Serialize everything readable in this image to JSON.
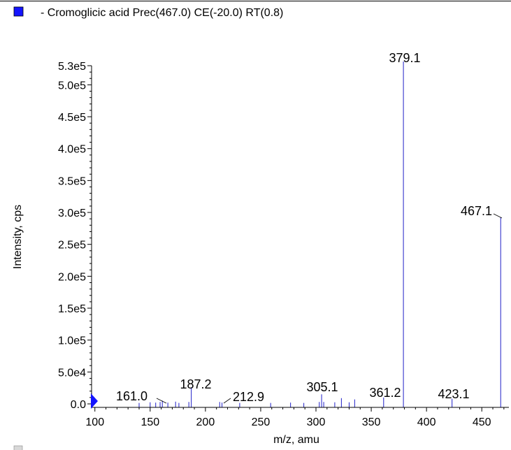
{
  "legend": {
    "label": "- Cromoglicic acid Prec(467.0) CE(-20.0) RT(0.8)",
    "color": "#1414ff"
  },
  "chart_data": {
    "type": "bar",
    "xlabel": "m/z, amu",
    "ylabel": "Intensity, cps",
    "xlim": [
      97,
      472
    ],
    "ylim": [
      0,
      530000
    ],
    "x_ticks": [
      {
        "value": 100,
        "label": "100"
      },
      {
        "value": 150,
        "label": "150"
      },
      {
        "value": 200,
        "label": "200"
      },
      {
        "value": 250,
        "label": "250"
      },
      {
        "value": 300,
        "label": "300"
      },
      {
        "value": 350,
        "label": "350"
      },
      {
        "value": 400,
        "label": "400"
      },
      {
        "value": 450,
        "label": "450"
      }
    ],
    "y_ticks": [
      {
        "value": 0,
        "label": "0.0"
      },
      {
        "value": 50000,
        "label": "5.0e4"
      },
      {
        "value": 100000,
        "label": "1.0e5"
      },
      {
        "value": 150000,
        "label": "1.5e5"
      },
      {
        "value": 200000,
        "label": "2.0e5"
      },
      {
        "value": 250000,
        "label": "2.5e5"
      },
      {
        "value": 300000,
        "label": "3.0e5"
      },
      {
        "value": 350000,
        "label": "3.5e5"
      },
      {
        "value": 400000,
        "label": "4.0e5"
      },
      {
        "value": 450000,
        "label": "4.5e5"
      },
      {
        "value": 500000,
        "label": "5.0e5"
      },
      {
        "value": 530000,
        "label": "5.3e5"
      }
    ],
    "series_color": "#2020c8",
    "peaks": [
      {
        "x": 140,
        "y": 1500
      },
      {
        "x": 150,
        "y": 2500
      },
      {
        "x": 155,
        "y": 2000
      },
      {
        "x": 159,
        "y": 3000
      },
      {
        "x": 161.0,
        "y": 5000
      },
      {
        "x": 166,
        "y": 2000
      },
      {
        "x": 173,
        "y": 3500
      },
      {
        "x": 176,
        "y": 1500
      },
      {
        "x": 185,
        "y": 3000
      },
      {
        "x": 187.2,
        "y": 26000
      },
      {
        "x": 212.9,
        "y": 3000
      },
      {
        "x": 215,
        "y": 2000
      },
      {
        "x": 231,
        "y": 1500
      },
      {
        "x": 259,
        "y": 1500
      },
      {
        "x": 277,
        "y": 2000
      },
      {
        "x": 289,
        "y": 1500
      },
      {
        "x": 303,
        "y": 3000
      },
      {
        "x": 305.1,
        "y": 15000
      },
      {
        "x": 307,
        "y": 3000
      },
      {
        "x": 317,
        "y": 2500
      },
      {
        "x": 323,
        "y": 9000
      },
      {
        "x": 330,
        "y": 2500
      },
      {
        "x": 335,
        "y": 7000
      },
      {
        "x": 361.2,
        "y": 10000
      },
      {
        "x": 379.1,
        "y": 540000
      },
      {
        "x": 423.1,
        "y": 8000
      },
      {
        "x": 467.1,
        "y": 292000
      }
    ],
    "annotations": [
      {
        "x": 161.0,
        "label": "161.0",
        "tx": 211,
        "ty": 573,
        "anchor": "end",
        "lx1": 224,
        "ly1": 570,
        "lx2": 238,
        "ly2": 577
      },
      {
        "x": 187.2,
        "label": "187.2",
        "tx": 280,
        "ty": 556,
        "anchor": "middle"
      },
      {
        "x": 212.9,
        "label": "212.9",
        "tx": 333,
        "ty": 574,
        "anchor": "start",
        "lx1": 320,
        "ly1": 577,
        "lx2": 330,
        "ly2": 570
      },
      {
        "x": 305.1,
        "label": "305.1",
        "tx": 461,
        "ty": 560,
        "anchor": "middle"
      },
      {
        "x": 361.2,
        "label": "361.2",
        "tx": 551,
        "ty": 568,
        "anchor": "middle"
      },
      {
        "x": 379.1,
        "label": "379.1",
        "tx": 579,
        "ty": 89,
        "anchor": "middle"
      },
      {
        "x": 423.1,
        "label": "423.1",
        "tx": 649,
        "ty": 570,
        "anchor": "middle"
      },
      {
        "x": 467.1,
        "label": "467.1",
        "tx": 704,
        "ty": 308,
        "anchor": "end",
        "lx1": 706,
        "ly1": 306,
        "lx2": 718,
        "ly2": 312
      }
    ]
  }
}
